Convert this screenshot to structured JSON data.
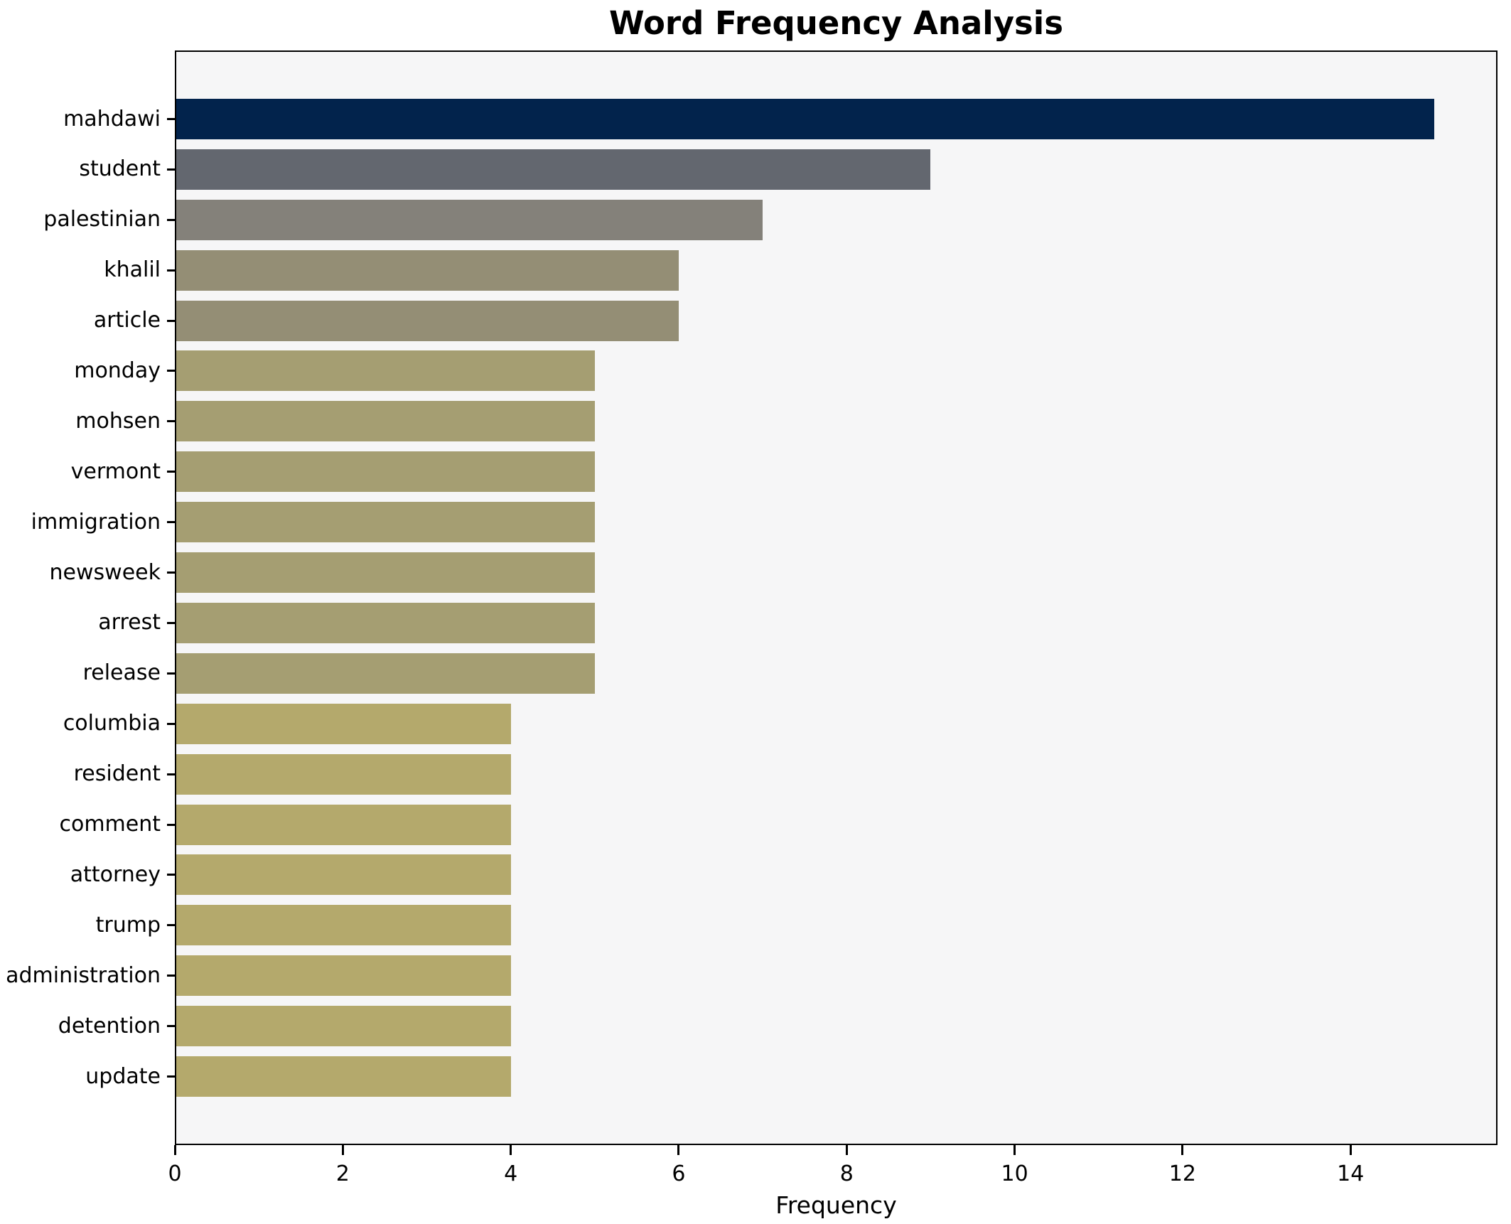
{
  "chart_data": {
    "type": "bar",
    "orientation": "horizontal",
    "title": "Word Frequency Analysis",
    "xlabel": "Frequency",
    "ylabel": "",
    "categories": [
      "mahdawi",
      "student",
      "palestinian",
      "khalil",
      "article",
      "monday",
      "mohsen",
      "vermont",
      "immigration",
      "newsweek",
      "arrest",
      "release",
      "columbia",
      "resident",
      "comment",
      "attorney",
      "trump",
      "administration",
      "detention",
      "update"
    ],
    "values": [
      15,
      9,
      7,
      6,
      6,
      5,
      5,
      5,
      5,
      5,
      5,
      5,
      4,
      4,
      4,
      4,
      4,
      4,
      4,
      4
    ],
    "bar_colors": [
      "#02234c",
      "#63676f",
      "#84817a",
      "#948e75",
      "#948e75",
      "#a59e72",
      "#a59e72",
      "#a59e72",
      "#a59e72",
      "#a59e72",
      "#a59e72",
      "#a59e72",
      "#b4a96c",
      "#b4a96c",
      "#b4a96c",
      "#b4a96c",
      "#b4a96c",
      "#b4a96c",
      "#b4a96c",
      "#b4a96c"
    ],
    "xticks": [
      0,
      2,
      4,
      6,
      8,
      10,
      12,
      14
    ],
    "xlim": [
      0,
      15.75
    ],
    "grid": false,
    "legend": null,
    "plot_background": "#f6f6f7",
    "figure_background": "#ffffff",
    "spine_color": "#000000",
    "text_color": "#000000"
  }
}
